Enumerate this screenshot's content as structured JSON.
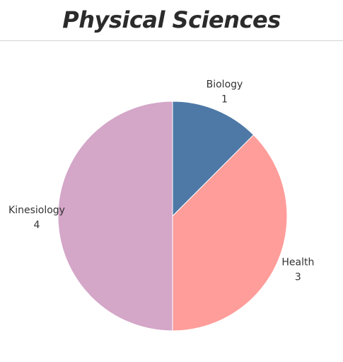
{
  "title": "Physical Sciences",
  "chart_data": {
    "type": "pie",
    "title": "Physical Sciences",
    "categories": [
      "Biology",
      "Health",
      "Kinesiology"
    ],
    "values": [
      1,
      3,
      4
    ],
    "colors": [
      "#4e79a7",
      "#ff9d9a",
      "#d4a6c8"
    ],
    "legend": "none",
    "labels_shown": true
  }
}
